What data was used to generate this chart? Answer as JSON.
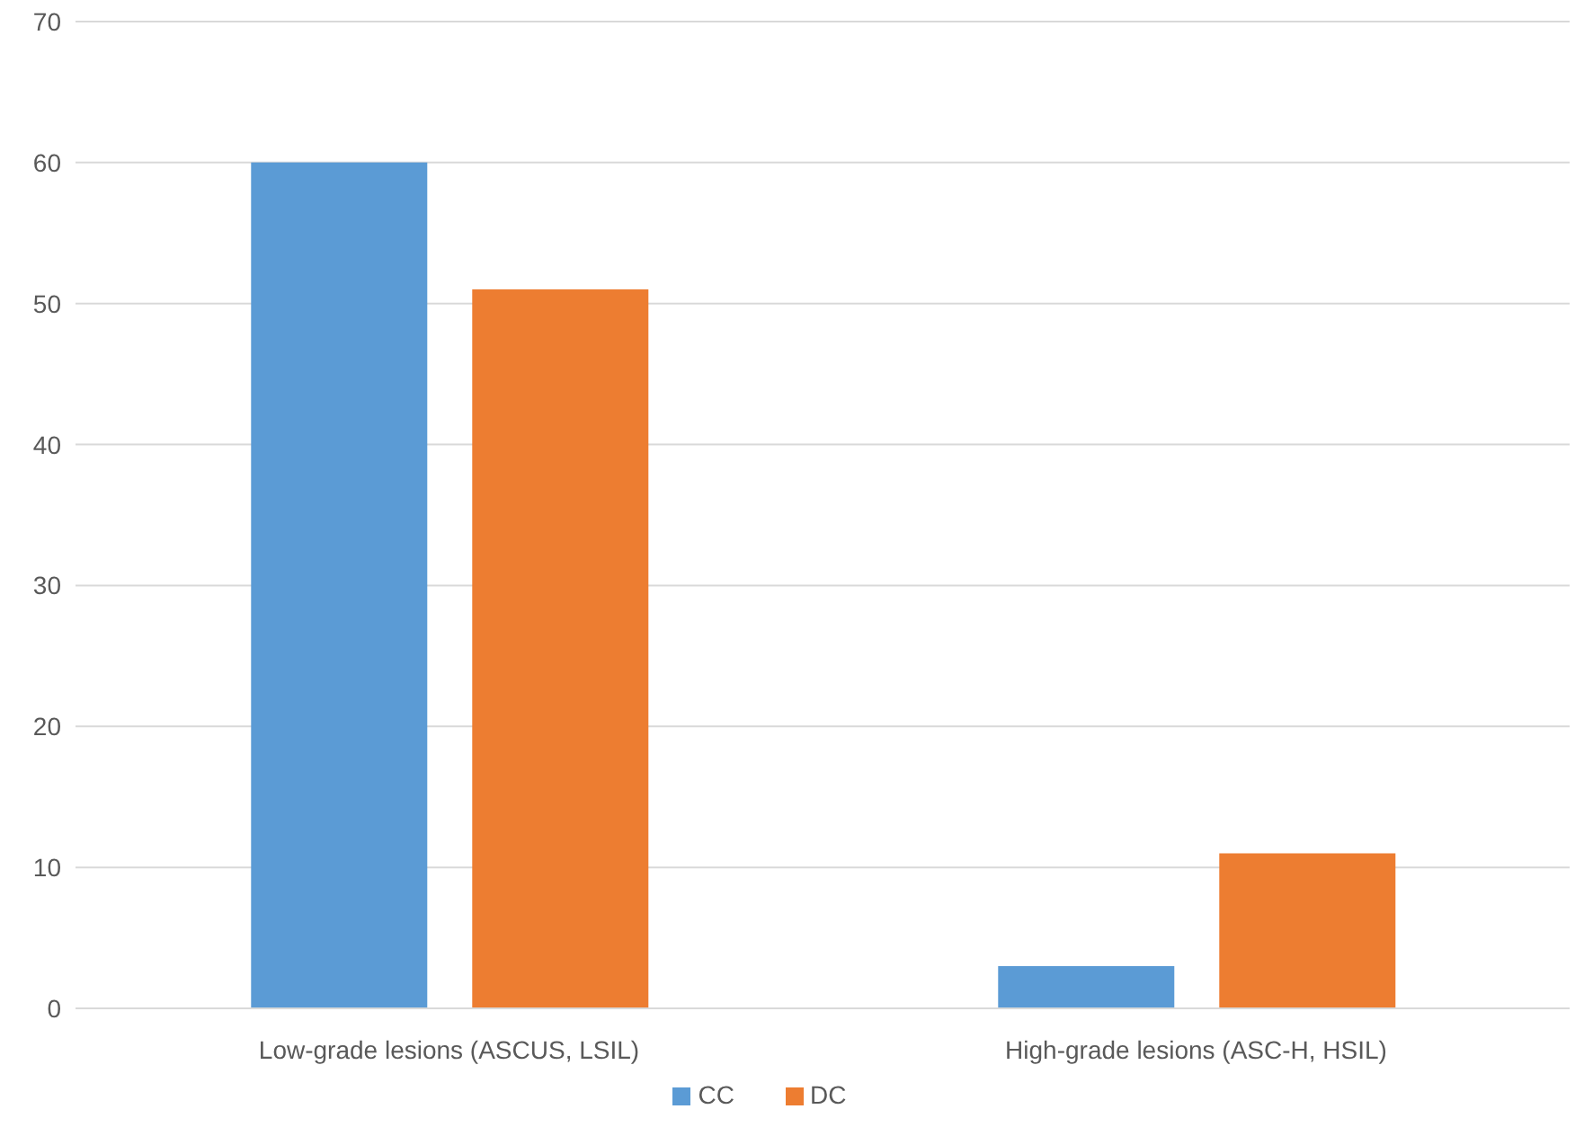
{
  "chart_data": {
    "type": "bar",
    "categories": [
      "Low-grade lesions (ASCUS, LSIL)",
      "High-grade lesions (ASC-H, HSIL)"
    ],
    "series": [
      {
        "name": "CC",
        "color": "#5b9bd5",
        "values": [
          60,
          3
        ]
      },
      {
        "name": "DC",
        "color": "#ed7d31",
        "values": [
          51,
          11
        ]
      }
    ],
    "ylim": [
      0,
      70
    ],
    "yticks": [
      0,
      10,
      20,
      30,
      40,
      50,
      60,
      70
    ],
    "grid": "y",
    "legend": "bottom"
  }
}
